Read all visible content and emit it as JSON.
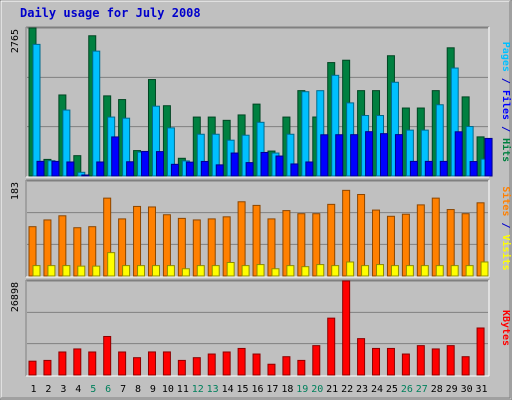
{
  "chart_data": {
    "type": "bar",
    "title": "Daily usage for July 2008",
    "colors": {
      "background": "#c0c0c0",
      "title": "#0000cc",
      "hits": "#008040",
      "files": "#00c0ff",
      "pages": "#0000ff",
      "visits": "#ff8000",
      "sites": "#ffff00",
      "kbytes": "#ff0000",
      "weekend": "#00805c"
    },
    "days": [
      "1",
      "2",
      "3",
      "4",
      "5",
      "6",
      "7",
      "8",
      "9",
      "10",
      "11",
      "12",
      "13",
      "14",
      "15",
      "16",
      "17",
      "18",
      "19",
      "20",
      "21",
      "22",
      "23",
      "24",
      "25",
      "26",
      "27",
      "28",
      "29",
      "30",
      "31"
    ],
    "weekend_days": [
      "5",
      "6",
      "12",
      "13",
      "19",
      "20",
      "26",
      "27"
    ],
    "panels": [
      {
        "id": "hits_files_pages",
        "ymax_label": "2765",
        "ymax": 2765,
        "side_labels": [
          {
            "text": "Pages",
            "color_key": "files"
          },
          {
            "text": " / ",
            "color_key": "title"
          },
          {
            "text": "Files",
            "color_key": "pages"
          },
          {
            "text": " / ",
            "color_key": "title"
          },
          {
            "text": "Hits",
            "color_key": "hits"
          }
        ],
        "series": [
          {
            "name": "Hits",
            "color_key": "hits",
            "offset": 0,
            "values": [
              2765,
              310,
              1514,
              380,
              2620,
              1497,
              1428,
              475,
              1802,
              1313,
              331,
              1101,
              1101,
              1040,
              1141,
              1343,
              466,
              1101,
              1595,
              1102,
              2119,
              2163,
              1595,
              1595,
              2247,
              1270,
              1270,
              1595,
              2395,
              1478,
              731
            ]
          },
          {
            "name": "Files",
            "color_key": "files",
            "offset": 4,
            "values": [
              2459,
              286,
              1232,
              69,
              2333,
              1101,
              1080,
              446,
              1304,
              899,
              282,
              780,
              780,
              669,
              762,
              1003,
              429,
              780,
              1575,
              1594,
              1881,
              1366,
              1130,
              1130,
              1751,
              857,
              857,
              1331,
              2017,
              924,
              316
            ]
          },
          {
            "name": "Pages",
            "color_key": "pages",
            "offset": 8,
            "values": [
              274,
              273,
              262,
              16,
              262,
              730,
              266,
              459,
              456,
              218,
              259,
              272,
              208,
              429,
              250,
              440,
              373,
              225,
              262,
              770,
              771,
              772,
              828,
              791,
              773,
              273,
              273,
              273,
              826,
              270,
              702
            ]
          }
        ]
      },
      {
        "id": "visits_sites",
        "ymax_label": "183",
        "ymax": 183,
        "side_labels": [
          {
            "text": "Sites",
            "color_key": "visits"
          },
          {
            "text": " / ",
            "color_key": "title"
          },
          {
            "text": "Visits",
            "color_key": "sites"
          }
        ],
        "series": [
          {
            "name": "Visits",
            "color_key": "visits",
            "offset": 0,
            "values": [
              95,
              108,
              116,
              93,
              95,
              150,
              110,
              134,
              133,
              118,
              111,
              108,
              110,
              114,
              143,
              136,
              110,
              126,
              120,
              120,
              138,
              165,
              157,
              127,
              115,
              119,
              137,
              150,
              128,
              120,
              141
            ]
          },
          {
            "name": "Sites",
            "color_key": "sites",
            "offset": 4,
            "values": [
              20,
              20,
              20,
              19,
              19,
              45,
              20,
              20,
              20,
              20,
              14,
              20,
              20,
              26,
              20,
              22,
              14,
              20,
              18,
              22,
              20,
              27,
              20,
              22,
              20,
              20,
              20,
              20,
              20,
              20,
              27
            ]
          }
        ]
      },
      {
        "id": "kbytes",
        "ymax_label": "26898",
        "ymax": 26898,
        "side_labels": [
          {
            "text": "KBytes",
            "color_key": "kbytes"
          }
        ],
        "series": [
          {
            "name": "KBytes",
            "color_key": "kbytes",
            "offset": 0,
            "values": [
              3954,
              4176,
              6585,
              7457,
              6585,
              11021,
              6585,
              4955,
              6598,
              6598,
              4176,
              4955,
              6002,
              6585,
              7600,
              6002,
              3078,
              5238,
              4176,
              8406,
              16271,
              26898,
              10407,
              7600,
              7600,
              6002,
              8406,
              7457,
              8406,
              5238,
              13451
            ]
          }
        ]
      }
    ]
  }
}
